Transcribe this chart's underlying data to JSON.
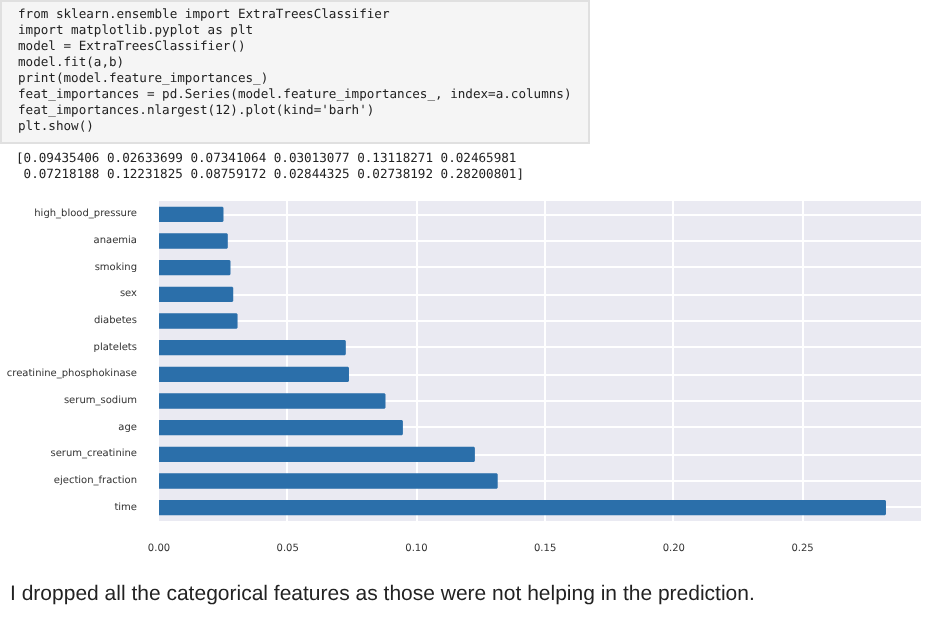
{
  "chart_data": {
    "type": "bar",
    "orientation": "horizontal",
    "categories": [
      "high_blood_pressure",
      "anaemia",
      "smoking",
      "sex",
      "diabetes",
      "platelets",
      "creatinine_phosphokinase",
      "serum_sodium",
      "age",
      "serum_creatinine",
      "ejection_fraction",
      "time"
    ],
    "values": [
      0.02465981,
      0.02633699,
      0.02738192,
      0.02844325,
      0.03013077,
      0.07218188,
      0.07341064,
      0.08759172,
      0.09435406,
      0.12231825,
      0.13118271,
      0.28200801
    ],
    "color": "#2b6faa",
    "xlim": [
      0,
      0.296
    ],
    "xticks": [
      {
        "value": 0,
        "label": "0.00"
      },
      {
        "value": 0.05,
        "label": "0.05"
      },
      {
        "value": 0.1,
        "label": "0.10"
      },
      {
        "value": 0.15,
        "label": "0.15"
      },
      {
        "value": 0.2,
        "label": "0.20"
      },
      {
        "value": 0.25,
        "label": "0.25"
      }
    ],
    "grid": true,
    "annotations": [
      "from sklearn.ensemble import ExtraTreesClassifier\nimport matplotlib.pyplot as plt\nmodel = ExtraTreesClassifier()\nmodel.fit(a,b)\nprint(model.feature_importances_)\nfeat_importances = pd.Series(model.feature_importances_, index=a.columns)\nfeat_importances.nlargest(12).plot(kind='barh')\nplt.show()",
      "[0.09435406 0.02633699 0.07341064 0.03013077 0.13118271 0.02465981\n 0.07218188 0.12231825 0.08759172 0.02844325 0.02738192 0.28200801]",
      "I dropped all the categorical features as those were not helping in the prediction."
    ]
  }
}
